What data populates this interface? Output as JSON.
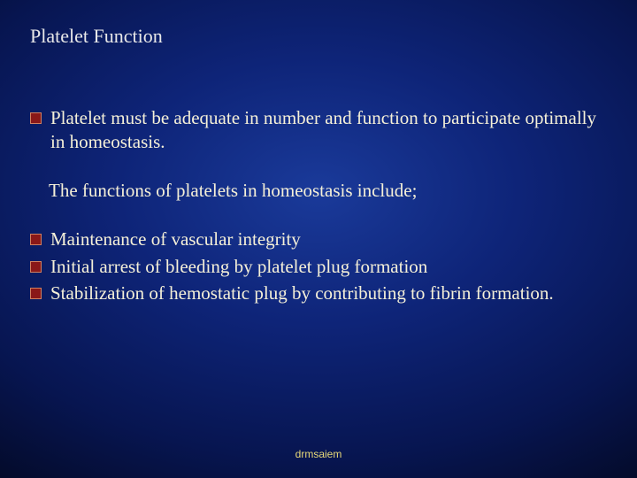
{
  "title": "Platelet Function",
  "items": [
    {
      "bullet": true,
      "text": "Platelet must be adequate in number and function to participate optimally in homeostasis."
    },
    {
      "gap": true
    },
    {
      "bullet": false,
      "text": "The functions of platelets in homeostasis include;"
    },
    {
      "gap": true
    },
    {
      "bullet": true,
      "text": "Maintenance of vascular integrity"
    },
    {
      "bullet": true,
      "text": "Initial arrest of bleeding by platelet plug formation"
    },
    {
      "bullet": true,
      "text": "Stabilization of hemostatic plug by contributing to fibrin formation."
    }
  ],
  "footer": "drmsaiem",
  "style": {
    "slide_size": [
      720,
      540
    ],
    "background_gradient": {
      "type": "radial",
      "stops": [
        "#1a3a9a",
        "#0e2478",
        "#071550",
        "#030820"
      ]
    },
    "title_color": "#e8e8e8",
    "title_fontsize": 22,
    "body_color": "#f5f0d8",
    "body_fontsize": 21,
    "bullet_fill": "#8a1818",
    "bullet_border": "#d08060",
    "bullet_size": 11,
    "footer_color": "#e8d878",
    "footer_fontsize": 12,
    "font_family": "Georgia, serif"
  }
}
